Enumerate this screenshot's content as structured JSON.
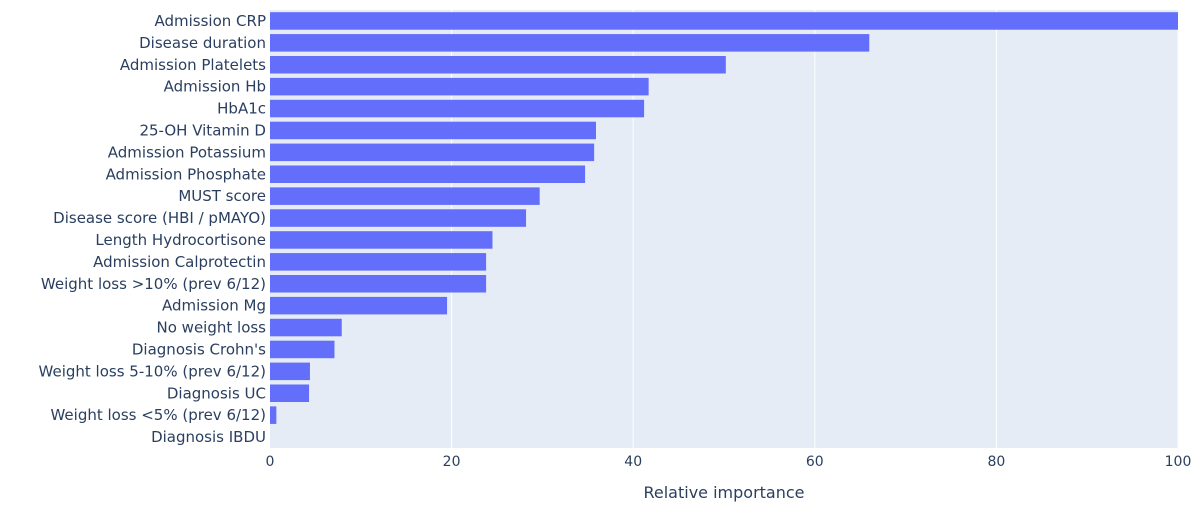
{
  "chart_data": {
    "type": "bar",
    "orientation": "horizontal",
    "categories": [
      "Admission CRP",
      "Disease duration",
      "Admission Platelets",
      "Admission Hb",
      "HbA1c",
      "25-OH Vitamin D",
      "Admission Potassium",
      "Admission Phosphate",
      "MUST score",
      "Disease score (HBI / pMAYO)",
      "Length Hydrocortisone",
      "Admission Calprotectin",
      "Weight loss >10% (prev 6/12)",
      "Admission Mg",
      "No weight loss",
      "Diagnosis Crohn's",
      "Weight loss 5-10% (prev 6/12)",
      "Diagnosis UC",
      "Weight loss <5% (prev 6/12)",
      "Diagnosis IBDU"
    ],
    "values": [
      100,
      66,
      50.2,
      41.7,
      41.2,
      35.9,
      35.7,
      34.7,
      29.7,
      28.2,
      24.5,
      23.8,
      23.8,
      19.5,
      7.9,
      7.1,
      4.4,
      4.3,
      0.7,
      0
    ],
    "xlabel": "Relative importance",
    "ylabel": "",
    "xlim": [
      0,
      100
    ],
    "xticks": [
      0,
      20,
      40,
      60,
      80,
      100
    ],
    "grid": "vertical",
    "colors": {
      "bar": "#636efa",
      "plot_bg": "#e5ecf6",
      "grid": "#ffffff",
      "text": "#2a3f5f"
    }
  }
}
